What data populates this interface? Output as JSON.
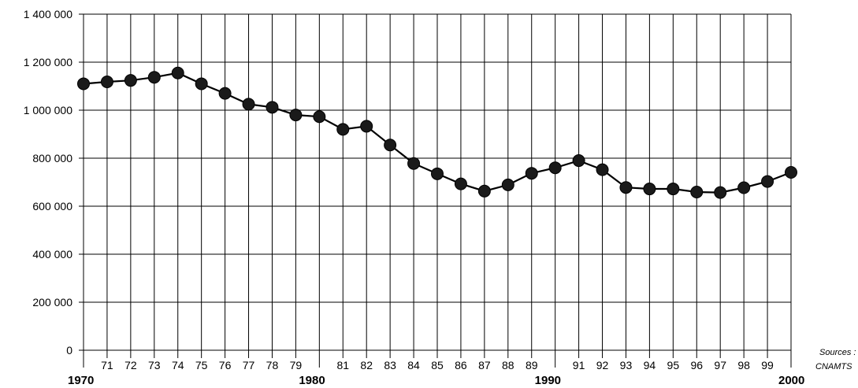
{
  "chart_data": {
    "type": "line",
    "x": [
      1970,
      1971,
      1972,
      1973,
      1974,
      1975,
      1976,
      1977,
      1978,
      1979,
      1980,
      1981,
      1982,
      1983,
      1984,
      1985,
      1986,
      1987,
      1988,
      1989,
      1990,
      1991,
      1992,
      1993,
      1994,
      1995,
      1996,
      1997,
      1998,
      1999,
      2000
    ],
    "x_tick_labels": [
      "1970",
      "71",
      "72",
      "73",
      "74",
      "75",
      "76",
      "77",
      "78",
      "79",
      "1980",
      "81",
      "82",
      "83",
      "84",
      "85",
      "86",
      "87",
      "88",
      "89",
      "1990",
      "91",
      "92",
      "93",
      "94",
      "95",
      "96",
      "97",
      "98",
      "99",
      "2000"
    ],
    "y": [
      1110000,
      1118000,
      1124000,
      1137000,
      1155000,
      1110000,
      1070000,
      1025000,
      1012000,
      980000,
      973000,
      920000,
      933000,
      855000,
      778000,
      735000,
      693000,
      663000,
      689000,
      737000,
      760000,
      790000,
      752000,
      678000,
      672000,
      672000,
      659000,
      657000,
      677000,
      703000,
      741000
    ],
    "y_ticks": [
      0,
      200000,
      400000,
      600000,
      800000,
      1000000,
      1200000,
      1400000
    ],
    "y_tick_labels": [
      "0",
      "200 000",
      "400 000",
      "600 000",
      "800 000",
      "1 000 000",
      "1 200 000",
      "1 400 000"
    ],
    "ylim": [
      0,
      1400000
    ],
    "xlim": [
      1970,
      2000
    ],
    "grid": true,
    "title": "",
    "xlabel": "",
    "ylabel": "",
    "source_note": [
      "Sources :",
      "CNAMTS"
    ]
  }
}
